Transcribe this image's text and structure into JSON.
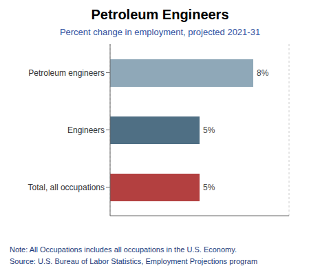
{
  "chart_data": {
    "type": "bar",
    "orientation": "horizontal",
    "title": "Petroleum Engineers",
    "subtitle": "Percent change in employment, projected 2021-31",
    "categories": [
      "Petroleum engineers",
      "Engineers",
      "Total, all occupations"
    ],
    "values": [
      8,
      5,
      5
    ],
    "value_labels": [
      "8%",
      "5%",
      "5%"
    ],
    "colors": [
      "#8fa8b8",
      "#4f6f84",
      "#b34040"
    ],
    "xlim": [
      0,
      10
    ],
    "xticks": [
      0,
      2,
      4,
      6,
      8,
      10
    ],
    "grid": true,
    "data_labels": true,
    "tick_labels": "y",
    "annotations": [
      "Note: All Occupations includes all occupations in the U.S. Economy.",
      "Source: U.S. Bureau of Labor Statistics, Employment Projections program"
    ]
  }
}
